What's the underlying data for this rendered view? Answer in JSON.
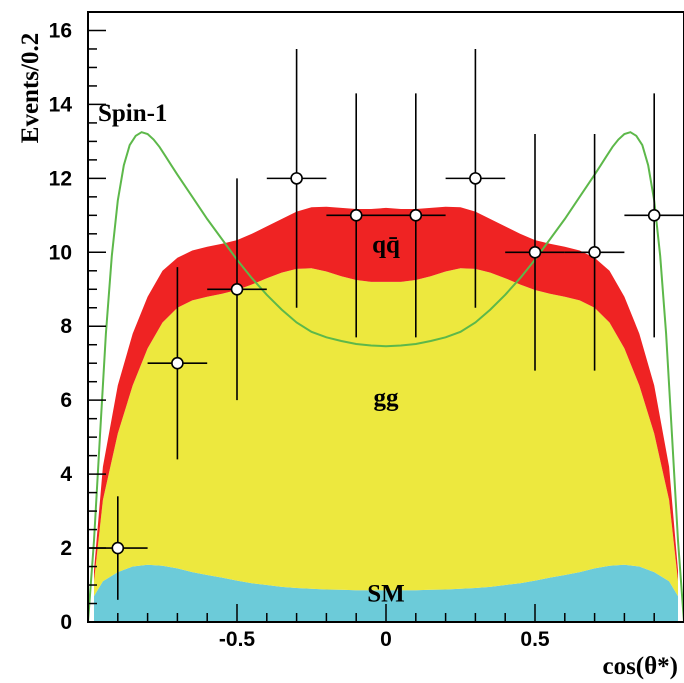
{
  "chart_data": {
    "type": "area",
    "xlabel": "cos(θ*)",
    "ylabel": "Events/0.2",
    "xlim": [
      -1.0,
      1.0
    ],
    "ylim": [
      0,
      16.5
    ],
    "x_ticks": [
      -0.5,
      0,
      0.5
    ],
    "x_tick_labels": [
      "-0.5",
      "0",
      "0.5"
    ],
    "y_ticks": [
      0,
      2,
      4,
      6,
      8,
      10,
      12,
      14,
      16
    ],
    "y_tick_labels": [
      "0",
      "2",
      "4",
      "6",
      "8",
      "10",
      "12",
      "14",
      "16"
    ],
    "grid": false,
    "colors": {
      "sm": "#6ccbd9",
      "gg": "#ede83e",
      "qq": "#ef2323",
      "spin1": "#5db84a",
      "marker_fill": "#ffffff"
    },
    "stack_x": [
      -0.98,
      -0.95,
      -0.9,
      -0.85,
      -0.8,
      -0.75,
      -0.7,
      -0.65,
      -0.6,
      -0.55,
      -0.5,
      -0.45,
      -0.4,
      -0.35,
      -0.3,
      -0.25,
      -0.2,
      -0.15,
      -0.1,
      -0.05,
      0,
      0.05,
      0.1,
      0.15,
      0.2,
      0.25,
      0.3,
      0.35,
      0.4,
      0.45,
      0.5,
      0.55,
      0.6,
      0.65,
      0.7,
      0.75,
      0.8,
      0.85,
      0.9,
      0.95,
      0.98
    ],
    "series": [
      {
        "name": "SM",
        "values": [
          0.7,
          1.1,
          1.35,
          1.5,
          1.55,
          1.52,
          1.45,
          1.35,
          1.27,
          1.2,
          1.12,
          1.05,
          1.0,
          0.95,
          0.92,
          0.9,
          0.88,
          0.87,
          0.86,
          0.86,
          0.86,
          0.86,
          0.86,
          0.87,
          0.88,
          0.9,
          0.92,
          0.95,
          1.0,
          1.05,
          1.12,
          1.2,
          1.27,
          1.35,
          1.45,
          1.52,
          1.55,
          1.5,
          1.35,
          1.1,
          0.7
        ]
      },
      {
        "name": "gg",
        "values": [
          0.4,
          2.2,
          3.75,
          4.9,
          5.85,
          6.58,
          7.05,
          7.35,
          7.53,
          7.68,
          7.86,
          8.08,
          8.3,
          8.5,
          8.63,
          8.67,
          8.6,
          8.48,
          8.39,
          8.34,
          8.34,
          8.34,
          8.39,
          8.48,
          8.6,
          8.67,
          8.63,
          8.5,
          8.3,
          8.08,
          7.86,
          7.68,
          7.53,
          7.35,
          7.05,
          6.58,
          5.85,
          4.9,
          3.75,
          2.2,
          0.4
        ]
      },
      {
        "name": "qq",
        "values": [
          0.3,
          0.9,
          1.3,
          1.4,
          1.4,
          1.4,
          1.35,
          1.35,
          1.35,
          1.35,
          1.35,
          1.37,
          1.4,
          1.45,
          1.55,
          1.65,
          1.75,
          1.85,
          1.92,
          1.97,
          2.0,
          1.97,
          1.92,
          1.85,
          1.75,
          1.65,
          1.55,
          1.45,
          1.4,
          1.37,
          1.35,
          1.35,
          1.35,
          1.35,
          1.35,
          1.4,
          1.4,
          1.4,
          1.3,
          0.9,
          0.3
        ]
      }
    ],
    "spin1_curve": {
      "name": "Spin-1",
      "x": [
        -1.0,
        -0.98,
        -0.96,
        -0.94,
        -0.92,
        -0.9,
        -0.88,
        -0.86,
        -0.84,
        -0.82,
        -0.8,
        -0.78,
        -0.76,
        -0.74,
        -0.72,
        -0.7,
        -0.65,
        -0.6,
        -0.55,
        -0.5,
        -0.45,
        -0.4,
        -0.35,
        -0.3,
        -0.25,
        -0.2,
        -0.15,
        -0.1,
        -0.05,
        0,
        0.05,
        0.1,
        0.15,
        0.2,
        0.25,
        0.3,
        0.35,
        0.4,
        0.45,
        0.5,
        0.55,
        0.6,
        0.65,
        0.7,
        0.72,
        0.74,
        0.76,
        0.78,
        0.8,
        0.82,
        0.84,
        0.86,
        0.88,
        0.9,
        0.92,
        0.94,
        0.96,
        0.98,
        1.0
      ],
      "y": [
        0.0,
        2.2,
        5.0,
        7.8,
        9.9,
        11.4,
        12.35,
        12.9,
        13.15,
        13.25,
        13.2,
        13.05,
        12.85,
        12.6,
        12.35,
        12.1,
        11.5,
        10.9,
        10.35,
        9.8,
        9.3,
        8.85,
        8.45,
        8.1,
        7.85,
        7.7,
        7.6,
        7.52,
        7.48,
        7.46,
        7.48,
        7.52,
        7.6,
        7.7,
        7.85,
        8.1,
        8.45,
        8.85,
        9.3,
        9.8,
        10.35,
        10.9,
        11.5,
        12.1,
        12.35,
        12.6,
        12.85,
        13.05,
        13.2,
        13.25,
        13.15,
        12.9,
        12.35,
        11.4,
        9.9,
        7.8,
        5.0,
        2.2,
        0.0
      ]
    },
    "data_points": {
      "x": [
        -0.9,
        -0.7,
        -0.5,
        -0.3,
        -0.1,
        0.1,
        0.3,
        0.5,
        0.7,
        0.9
      ],
      "y": [
        2,
        7,
        9,
        12,
        11,
        11,
        12,
        10,
        10,
        11
      ],
      "x_err": [
        0.1,
        0.1,
        0.1,
        0.1,
        0.1,
        0.1,
        0.1,
        0.1,
        0.1,
        0.1
      ],
      "y_err_low": [
        1.4,
        2.6,
        3.0,
        3.5,
        3.3,
        3.3,
        3.5,
        3.2,
        3.2,
        3.3
      ],
      "y_err_high": [
        1.4,
        2.6,
        3.0,
        3.5,
        3.3,
        3.3,
        3.5,
        3.2,
        3.2,
        3.3
      ]
    },
    "annotations": [
      {
        "text": "Spin-1",
        "x": -0.85,
        "y": 13.55
      },
      {
        "text": "qq̄",
        "x": 0.0,
        "y": 10.0
      },
      {
        "text": "gg",
        "x": 0.0,
        "y": 5.85
      },
      {
        "text": "SM",
        "x": 0.0,
        "y": 0.55
      }
    ]
  }
}
